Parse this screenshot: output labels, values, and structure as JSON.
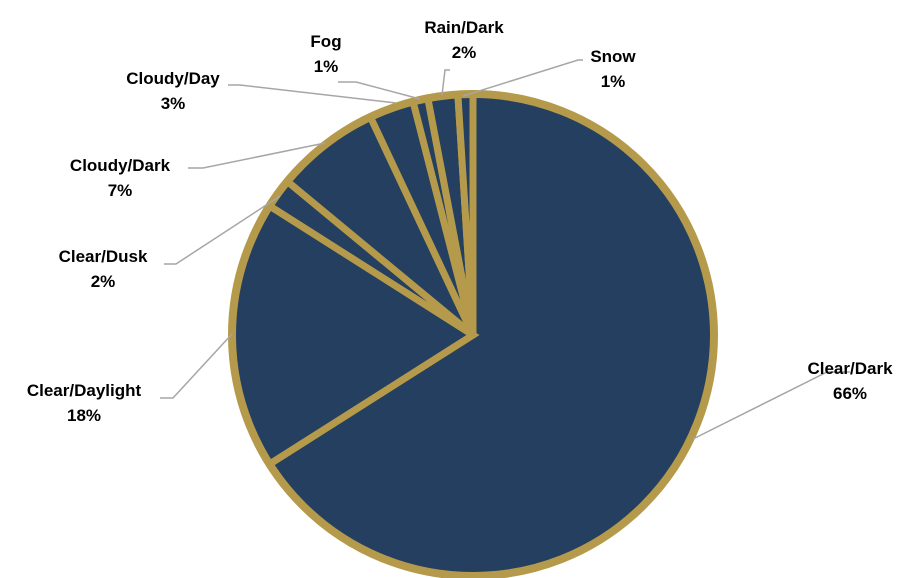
{
  "chart_data": {
    "type": "pie",
    "title": "",
    "start_angle_deg": 0,
    "direction": "clockwise",
    "colors": {
      "slice_fill": "#243f60",
      "slice_border": "#b49a4a",
      "label_text": "#000000",
      "leader_line": "#a6a6a6"
    },
    "slices": [
      {
        "label": "Clear/Dark",
        "percent_label": "66%",
        "value": 66
      },
      {
        "label": "Clear/Daylight",
        "percent_label": "18%",
        "value": 18
      },
      {
        "label": "Clear/Dusk",
        "percent_label": "2%",
        "value": 2
      },
      {
        "label": "Cloudy/Dark",
        "percent_label": "7%",
        "value": 7
      },
      {
        "label": "Cloudy/Day",
        "percent_label": "3%",
        "value": 3
      },
      {
        "label": "Fog",
        "percent_label": "1%",
        "value": 1
      },
      {
        "label": "Rain/Dark",
        "percent_label": "2%",
        "value": 2
      },
      {
        "label": "Snow",
        "percent_label": "1%",
        "value": 1
      }
    ]
  }
}
